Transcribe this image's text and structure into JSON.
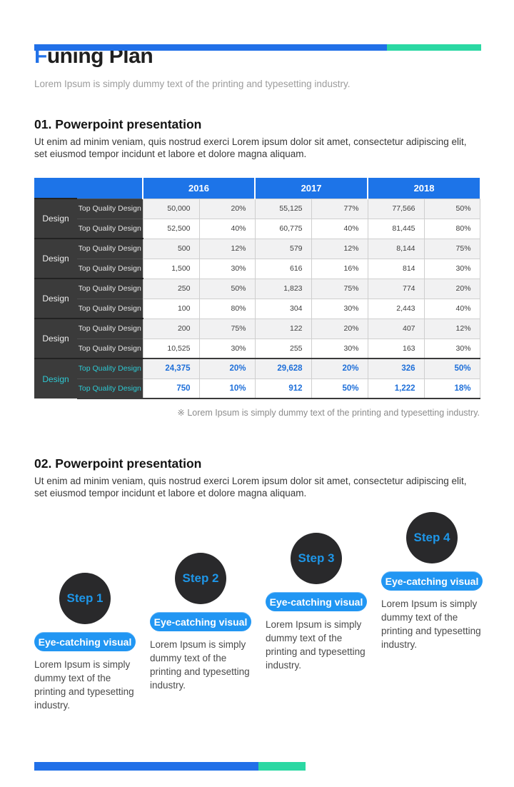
{
  "page": {
    "title_accent": "F",
    "title_rest": "uning Plan",
    "subtitle": "Lorem Ipsum is simply dummy text of the printing  and typesetting industry."
  },
  "colors": {
    "accent_blue": "#2170E8",
    "accent_green": "#2BD8A3",
    "header_blue": "#1D74E8",
    "dark_cell": "#3B3B3B",
    "highlight_value_blue": "#1E6FD9",
    "highlight_label_cyan": "#2EC8D2",
    "step_circle": "#29292B",
    "step_pill_blue": "#2196F3"
  },
  "section1": {
    "heading": "01. Powerpoint presentation",
    "body": "Ut enim ad minim veniam, quis nostrud exerci  Lorem ipsum dolor sit amet, consectetur adipiscing elit,  set eiusmod tempor incidunt et labore  et dolore magna aliquam.",
    "note": "※ Lorem Ipsum is simply  dummy text of the printing and typesetting industry."
  },
  "table": {
    "years": [
      "2016",
      "2017",
      "2018"
    ],
    "groups": [
      {
        "label": "Design",
        "highlight": false,
        "rows": [
          {
            "label": "Top Quality Design",
            "values": [
              "50,000",
              "20%",
              "55,125",
              "77%",
              "77,566",
              "50%"
            ]
          },
          {
            "label": "Top Quality Design",
            "values": [
              "52,500",
              "40%",
              "60,775",
              "40%",
              "81,445",
              "80%"
            ]
          }
        ]
      },
      {
        "label": "Design",
        "highlight": false,
        "rows": [
          {
            "label": "Top Quality Design",
            "values": [
              "500",
              "12%",
              "579",
              "12%",
              "8,144",
              "75%"
            ]
          },
          {
            "label": "Top Quality Design",
            "values": [
              "1,500",
              "30%",
              "616",
              "16%",
              "814",
              "30%"
            ]
          }
        ]
      },
      {
        "label": "Design",
        "highlight": false,
        "rows": [
          {
            "label": "Top Quality Design",
            "values": [
              "250",
              "50%",
              "1,823",
              "75%",
              "774",
              "20%"
            ]
          },
          {
            "label": "Top Quality Design",
            "values": [
              "100",
              "80%",
              "304",
              "30%",
              "2,443",
              "40%"
            ]
          }
        ]
      },
      {
        "label": "Design",
        "highlight": false,
        "rows": [
          {
            "label": "Top Quality Design",
            "values": [
              "200",
              "75%",
              "122",
              "20%",
              "407",
              "12%"
            ]
          },
          {
            "label": "Top Quality Design",
            "values": [
              "10,525",
              "30%",
              "255",
              "30%",
              "163",
              "30%"
            ]
          }
        ]
      },
      {
        "label": "Design",
        "highlight": true,
        "rows": [
          {
            "label": "Top Quality Design",
            "values": [
              "24,375",
              "20%",
              "29,628",
              "20%",
              "326",
              "50%"
            ]
          },
          {
            "label": "Top Quality Design",
            "values": [
              "750",
              "10%",
              "912",
              "50%",
              "1,222",
              "18%"
            ]
          }
        ]
      }
    ]
  },
  "section2": {
    "heading": "02. Powerpoint presentation",
    "body": "Ut enim ad minim veniam, quis nostrud exerci  Lorem ipsum dolor sit amet, consectetur adipiscing elit,  set eiusmod tempor incidunt et labore  et dolore magna aliquam."
  },
  "steps": [
    {
      "label": "Step 1",
      "badge": "Eye-catching  visual",
      "text": "Lorem Ipsum is  simply dummy text of the printing and typesetting industry."
    },
    {
      "label": "Step 2",
      "badge": "Eye-catching  visual",
      "text": "Lorem Ipsum is  simply dummy text of the printing and typesetting industry."
    },
    {
      "label": "Step 3",
      "badge": "Eye-catching  visual",
      "text": "Lorem Ipsum is  simply dummy text of the printing and typesetting industry."
    },
    {
      "label": "Step 4",
      "badge": "Eye-catching  visual",
      "text": "Lorem Ipsum is  simply dummy text of the printing and typesetting industry."
    }
  ]
}
